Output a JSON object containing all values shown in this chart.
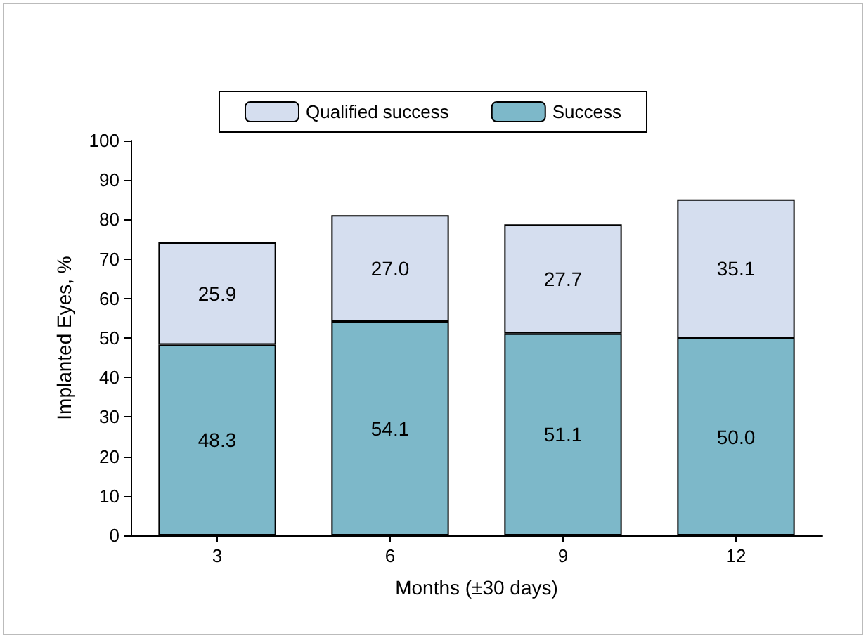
{
  "chart_data": {
    "type": "bar",
    "stacked": true,
    "xlabel": "Months (±30 days)",
    "ylabel": "Implanted Eyes, %",
    "categories": [
      "3",
      "6",
      "9",
      "12"
    ],
    "series": [
      {
        "name": "Success",
        "color": "#7db8c9",
        "values": [
          48.3,
          54.1,
          51.1,
          50.0
        ],
        "value_labels": [
          "48.3",
          "54.1",
          "51.1",
          "50.0"
        ]
      },
      {
        "name": "Qualified success",
        "color": "#d5deef",
        "values": [
          25.9,
          27.0,
          27.7,
          35.1
        ],
        "value_labels": [
          "25.9",
          "27.0",
          "27.7",
          "35.1"
        ]
      }
    ],
    "ylim": [
      0,
      100
    ],
    "yticks": [
      0,
      10,
      20,
      30,
      40,
      50,
      60,
      70,
      80,
      90,
      100
    ],
    "grid": false,
    "legend": "top"
  }
}
